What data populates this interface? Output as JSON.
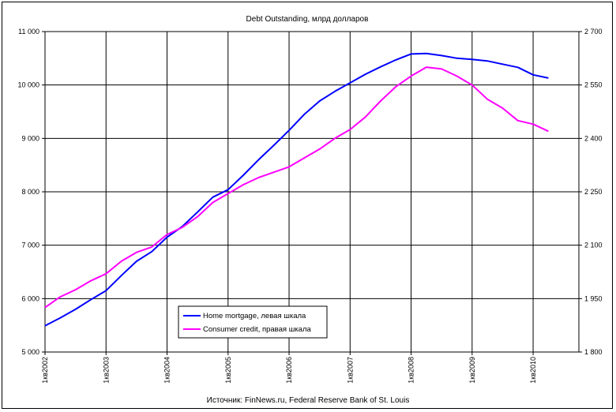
{
  "chart_data": {
    "type": "line",
    "title": "Debt Outstanding, млрд долларов",
    "source": "Источник: FinNews.ru, Federal Reserve Bank of St. Louis",
    "x_ticks": [
      "1кв2002",
      "1кв2003",
      "1кв2004",
      "1кв2005",
      "1кв2006",
      "1кв2007",
      "1кв2008",
      "1кв2009",
      "1кв2010"
    ],
    "xlim": [
      2002.0,
      2010.75
    ],
    "y_left": {
      "ylim": [
        5000,
        11000
      ],
      "ticks": [
        5000,
        6000,
        7000,
        8000,
        9000,
        10000,
        11000
      ],
      "tick_labels": [
        "5 000",
        "6 000",
        "7 000",
        "8 000",
        "9 000",
        "10 000",
        "11 000"
      ]
    },
    "y_right": {
      "ylim": [
        1800,
        2700
      ],
      "ticks": [
        1800,
        1950,
        2100,
        2250,
        2400,
        2550,
        2700
      ],
      "tick_labels": [
        "1 800",
        "1 950",
        "2 100",
        "2 250",
        "2 400",
        "2 550",
        "2 700"
      ]
    },
    "grid": true,
    "legend_position": "bottom-center",
    "series": [
      {
        "name": "Home mortgage, левая шкала",
        "axis": "left",
        "color": "#0000ff",
        "x": [
          2002.0,
          2002.25,
          2002.5,
          2002.75,
          2003.0,
          2003.25,
          2003.5,
          2003.75,
          2004.0,
          2004.25,
          2004.5,
          2004.75,
          2005.0,
          2005.25,
          2005.5,
          2005.75,
          2006.0,
          2006.25,
          2006.5,
          2006.75,
          2007.0,
          2007.25,
          2007.5,
          2007.75,
          2008.0,
          2008.25,
          2008.5,
          2008.75,
          2009.0,
          2009.25,
          2009.5,
          2009.75,
          2010.0,
          2010.25
        ],
        "values": [
          5490,
          5640,
          5800,
          5980,
          6150,
          6430,
          6700,
          6880,
          7150,
          7350,
          7620,
          7900,
          8040,
          8310,
          8600,
          8870,
          9150,
          9450,
          9700,
          9880,
          10040,
          10200,
          10340,
          10470,
          10580,
          10590,
          10550,
          10500,
          10480,
          10450,
          10390,
          10330,
          10190,
          10130
        ]
      },
      {
        "name": "Consumer credit, правая шкала",
        "axis": "right",
        "color": "#ff00ff",
        "x": [
          2002.0,
          2002.25,
          2002.5,
          2002.75,
          2003.0,
          2003.25,
          2003.5,
          2003.75,
          2004.0,
          2004.25,
          2004.5,
          2004.75,
          2005.0,
          2005.25,
          2005.5,
          2005.75,
          2006.0,
          2006.25,
          2006.5,
          2006.75,
          2007.0,
          2007.25,
          2007.5,
          2007.75,
          2008.0,
          2008.25,
          2008.5,
          2008.75,
          2009.0,
          2009.25,
          2009.5,
          2009.75,
          2010.0,
          2010.25
        ],
        "values": [
          1925,
          1955,
          1975,
          2000,
          2020,
          2055,
          2080,
          2095,
          2130,
          2150,
          2180,
          2220,
          2245,
          2270,
          2290,
          2305,
          2320,
          2345,
          2370,
          2400,
          2425,
          2460,
          2505,
          2545,
          2575,
          2600,
          2595,
          2575,
          2550,
          2510,
          2485,
          2450,
          2440,
          2420
        ]
      }
    ]
  }
}
